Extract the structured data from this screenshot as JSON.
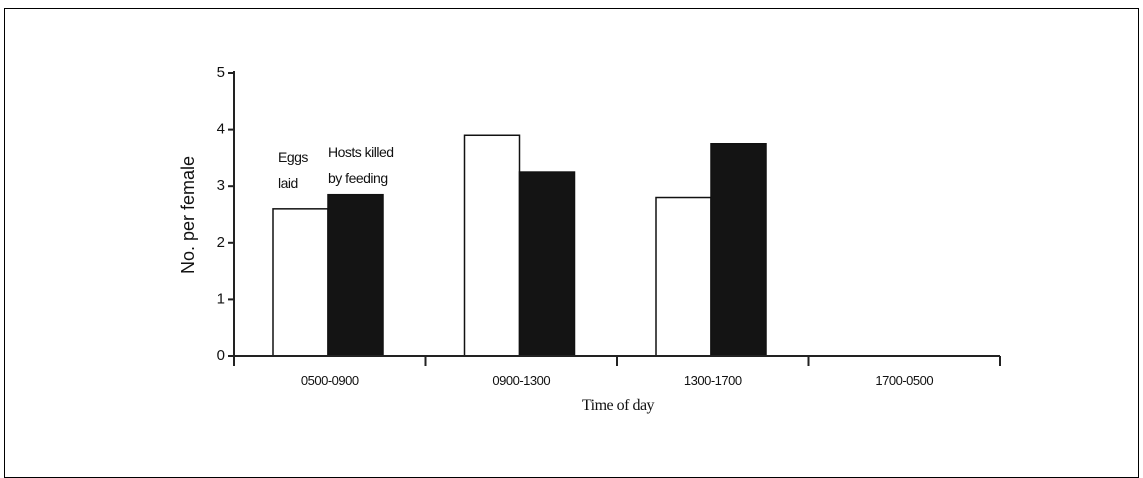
{
  "chart_data": {
    "type": "bar",
    "title": "",
    "xlabel": "Time of day",
    "ylabel": "No. per female",
    "ylim": [
      0,
      5
    ],
    "yticks": [
      0,
      1,
      2,
      3,
      4,
      5
    ],
    "categories": [
      "0500-0900",
      "0900-1300",
      "1300-1700",
      "1700-0500"
    ],
    "series": [
      {
        "name": "Eggs laid",
        "values": [
          2.6,
          3.9,
          2.8,
          0
        ],
        "color": "#ffffff",
        "stroke": "#111111"
      },
      {
        "name": "Hosts killed by feeding",
        "values": [
          2.85,
          3.25,
          3.75,
          0
        ],
        "color": "#141414",
        "stroke": "#111111"
      }
    ],
    "annotations": [
      {
        "lines": [
          "Eggs",
          "laid"
        ],
        "series": "Eggs laid"
      },
      {
        "lines": [
          "Hosts killed",
          "by feeding"
        ],
        "series": "Hosts killed by feeding"
      }
    ],
    "grid": false,
    "legend": "none"
  }
}
